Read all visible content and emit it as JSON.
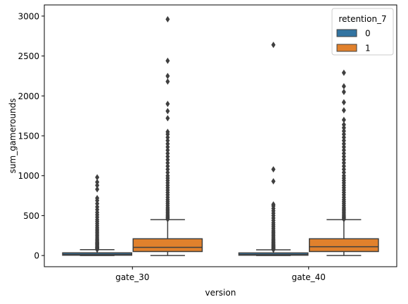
{
  "chart_data": {
    "type": "box",
    "title": "",
    "xlabel": "version",
    "ylabel": "sum_gamerounds",
    "ylim": [
      -140,
      3140
    ],
    "yticks": [
      0,
      500,
      1000,
      1500,
      2000,
      2500,
      3000
    ],
    "categories": [
      "gate_30",
      "gate_40"
    ],
    "hue_title": "retention_7",
    "legend_position": "top-right",
    "grid": false,
    "series": [
      {
        "name": "0",
        "color": "#3274a1",
        "boxes": [
          {
            "category": "gate_30",
            "whisker_low": 0,
            "q1": 4,
            "median": 13,
            "q3": 34,
            "whisker_high": 74,
            "outliers": [
              75,
              82,
              90,
              98,
              105,
              115,
              125,
              135,
              145,
              155,
              165,
              180,
              195,
              210,
              230,
              250,
              270,
              290,
              310,
              330,
              350,
              375,
              400,
              425,
              450,
              480,
              510,
              540,
              575,
              610,
              650,
              690,
              720,
              830,
              880,
              920,
              980
            ]
          },
          {
            "category": "gate_40",
            "whisker_low": 0,
            "q1": 4,
            "median": 12,
            "q3": 33,
            "whisker_high": 72,
            "outliers": [
              74,
              82,
              90,
              98,
              108,
              118,
              128,
              140,
              152,
              165,
              180,
              195,
              210,
              230,
              250,
              270,
              290,
              310,
              335,
              360,
              385,
              410,
              440,
              470,
              500,
              530,
              560,
              590,
              620,
              640,
              930,
              1080,
              2640
            ]
          }
        ]
      },
      {
        "name": "1",
        "color": "#e1812c",
        "boxes": [
          {
            "category": "gate_30",
            "whisker_low": 0,
            "q1": 50,
            "median": 103,
            "q3": 210,
            "whisker_high": 450,
            "outliers": [
              455,
              470,
              485,
              500,
              520,
              540,
              560,
              580,
              600,
              625,
              650,
              675,
              700,
              730,
              760,
              790,
              820,
              850,
              880,
              910,
              940,
              970,
              1000,
              1040,
              1080,
              1120,
              1160,
              1200,
              1240,
              1280,
              1320,
              1360,
              1400,
              1440,
              1480,
              1520,
              1550,
              1720,
              1810,
              1900,
              2180,
              2250,
              2440,
              2960
            ]
          },
          {
            "category": "gate_40",
            "whisker_low": 0,
            "q1": 50,
            "median": 110,
            "q3": 210,
            "whisker_high": 450,
            "outliers": [
              455,
              470,
              485,
              500,
              520,
              540,
              560,
              580,
              600,
              625,
              650,
              675,
              700,
              730,
              760,
              790,
              820,
              850,
              880,
              910,
              940,
              970,
              1000,
              1040,
              1080,
              1120,
              1160,
              1200,
              1240,
              1280,
              1320,
              1360,
              1400,
              1440,
              1480,
              1520,
              1560,
              1600,
              1640,
              1700,
              1820,
              1920,
              2050,
              2120,
              2290
            ]
          }
        ]
      }
    ]
  }
}
